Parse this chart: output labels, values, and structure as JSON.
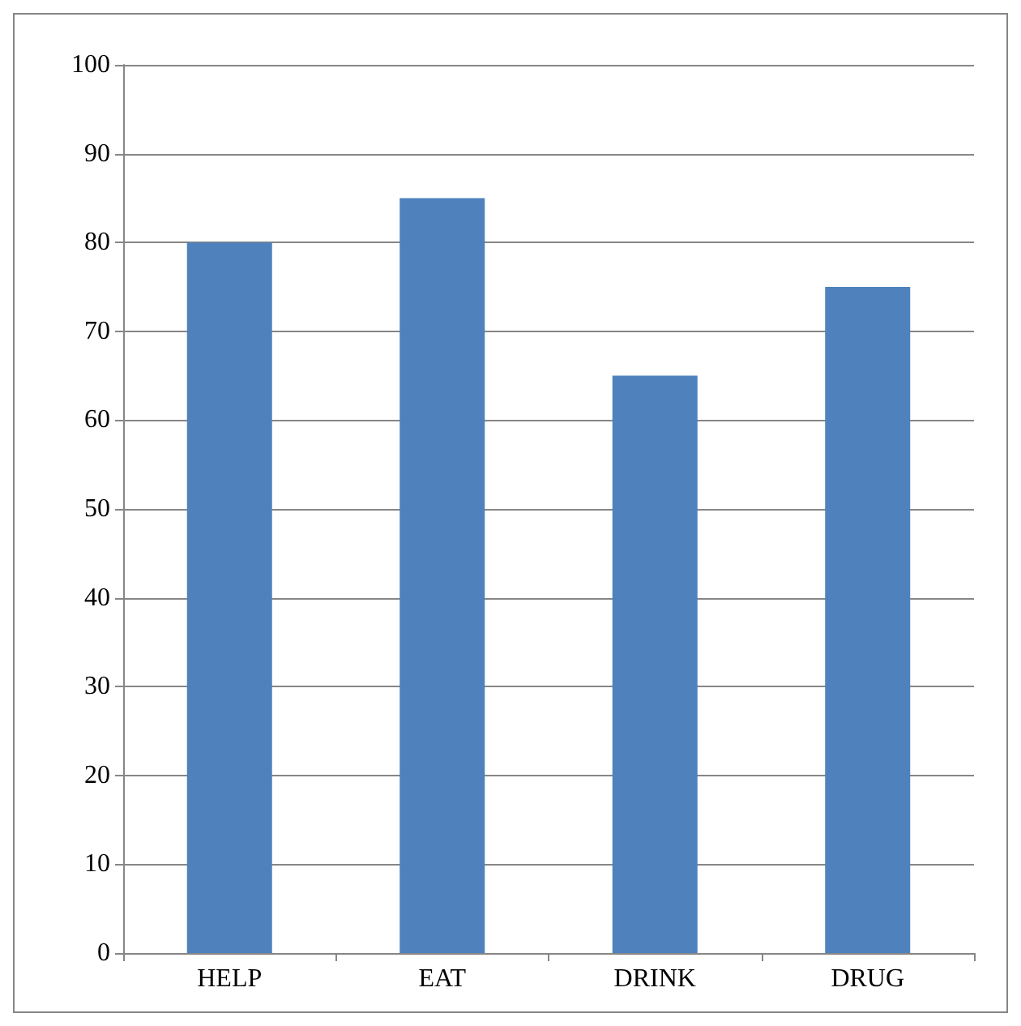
{
  "chart_data": {
    "type": "bar",
    "categories": [
      "HELP",
      "EAT",
      "DRINK",
      "DRUG"
    ],
    "values": [
      80,
      85,
      65,
      75
    ],
    "color": "#4f81bd",
    "ylim": [
      0,
      100
    ],
    "yticks": [
      0,
      10,
      20,
      30,
      40,
      50,
      60,
      70,
      80,
      90,
      100
    ],
    "grid": "y"
  }
}
